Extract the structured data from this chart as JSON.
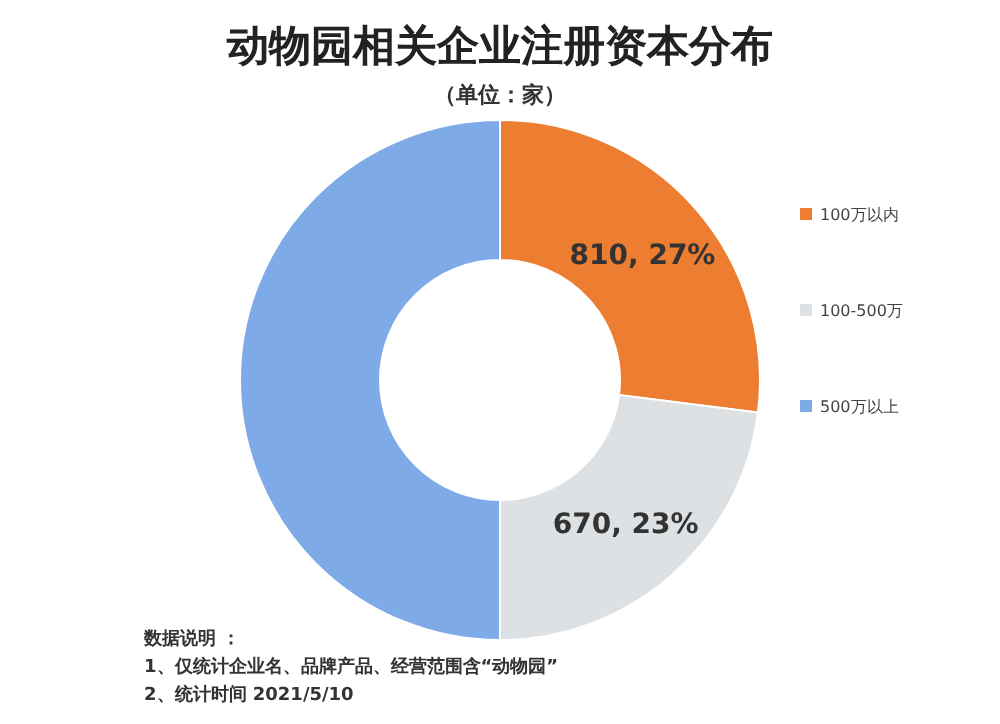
{
  "chart_data": {
    "type": "donut",
    "title": "动物园相关企业注册资本分布",
    "subtitle": "（单位：家）",
    "categories": [
      "100万以内",
      "100-500万",
      "500万以上"
    ],
    "values": [
      27,
      23,
      50
    ],
    "value_labels": [
      "810, 27%",
      "670, 23%",
      null
    ],
    "colors": [
      "#ed7d31",
      "#dde1e4",
      "#7eaae8"
    ],
    "legend": "right",
    "annotations": [
      "数据说明 ：",
      "1、仅统计企业名、品牌产品、经营范围含“动物园”",
      "2、统计时间 2021/5/10"
    ]
  }
}
